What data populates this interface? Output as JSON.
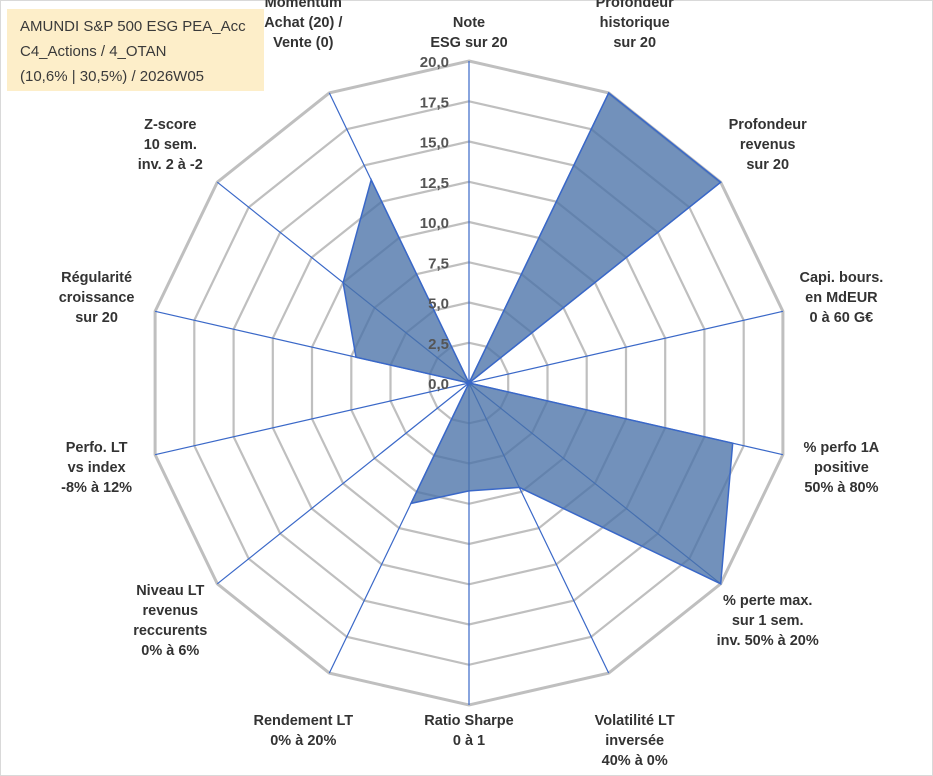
{
  "title_lines": [
    "AMUNDI S&P 500 ESG PEA_Acc",
    "C4_Actions / 4_OTAN",
    "(10,6% | 30,5%) / 2026W05"
  ],
  "chart_data": {
    "type": "radar",
    "title": "AMUNDI S&P 500 ESG PEA_Acc",
    "rmin": 0,
    "rmax": 20,
    "tick_step": 2.5,
    "ticks": [
      "0,0",
      "2,5",
      "5,0",
      "7,5",
      "10,0",
      "12,5",
      "15,0",
      "17,5",
      "20,0"
    ],
    "grid": true,
    "categories": [
      [
        "Note",
        "ESG sur 20"
      ],
      [
        "Profondeur",
        "historique",
        "sur 20"
      ],
      [
        "Profondeur",
        "revenus",
        "sur 20"
      ],
      [
        "Capi. bours.",
        "en MdEUR",
        "0 à 60 G€"
      ],
      [
        "% perfo 1A",
        "positive",
        "50% à 80%"
      ],
      [
        "% perte max.",
        "sur 1 sem.",
        "inv. 50% à 20%"
      ],
      [
        "Volatilité LT",
        "inversée",
        "40% à 0%"
      ],
      [
        "Ratio Sharpe",
        "0 à 1"
      ],
      [
        "Rendement LT",
        "0% à 20%"
      ],
      [
        "Niveau LT",
        "revenus",
        "reccurents",
        "0% à 6%"
      ],
      [
        "Perfo. LT",
        "vs index",
        "-8% à 12%"
      ],
      [
        "Régularité",
        "croissance",
        "sur 20"
      ],
      [
        "Z-score",
        "10 sem.",
        "inv. 2 à -2"
      ],
      [
        "Momentum",
        "Achat (20) /",
        "Vente (0)"
      ]
    ],
    "series": [
      {
        "values": [
          0,
          20,
          20,
          0,
          16.8,
          20,
          7.2,
          6.7,
          8.3,
          0,
          0,
          7.2,
          10,
          14
        ],
        "color": "#4a72a8"
      }
    ],
    "colors": {
      "fill": "#4a72a8",
      "stroke": "#3a68c8",
      "grid": "#bfbfbf",
      "spoke": "#3a68c8"
    }
  }
}
